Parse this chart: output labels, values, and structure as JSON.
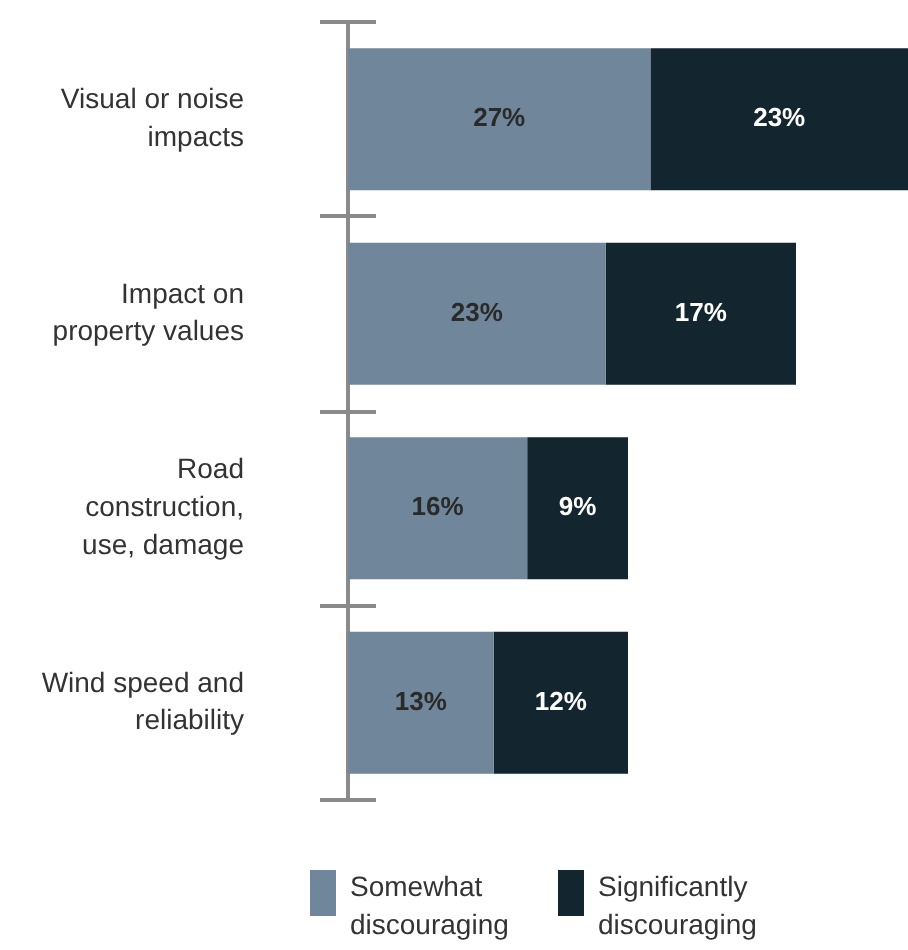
{
  "chart_data": {
    "type": "bar",
    "orientation": "horizontal",
    "stacked": true,
    "categories": [
      "Visual or noise impacts",
      "Impact on property values",
      "Road construction, use, damage",
      "Wind speed and reliability"
    ],
    "series": [
      {
        "name": "Somewhat discouraging",
        "color": "#6f869b",
        "values": [
          27,
          23,
          16,
          13
        ],
        "value_labels": [
          "27%",
          "23%",
          "16%",
          "13%"
        ]
      },
      {
        "name": "Significantly discouraging",
        "color": "#132630",
        "values": [
          23,
          17,
          9,
          12
        ],
        "value_labels": [
          "23%",
          "17%",
          "9%",
          "12%"
        ]
      }
    ],
    "legend": "bottom",
    "tick_labels": "y"
  }
}
